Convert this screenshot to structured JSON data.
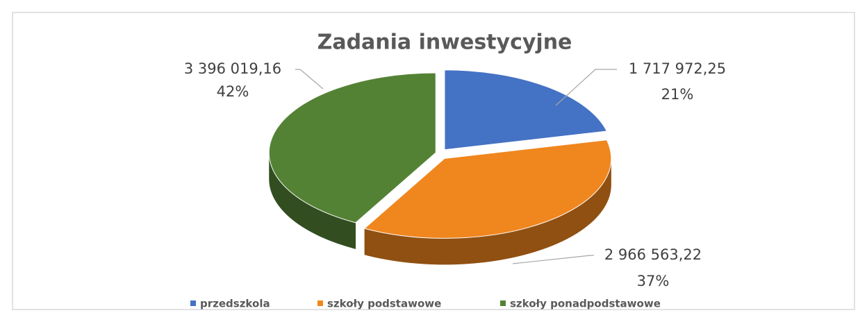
{
  "chart_data": {
    "type": "pie",
    "title": "Zadania inwestycyjne",
    "categories": [
      "przedszkola",
      "szkoły podstawowe",
      "szkoły ponadpodstawowe"
    ],
    "values": [
      1717972.25,
      2966563.22,
      3396019.16
    ],
    "value_labels": [
      "1 717 972,25",
      "2 966 563,22",
      "3 396 019,16"
    ],
    "percentages": [
      21,
      37,
      42
    ],
    "percentage_labels": [
      "21%",
      "37%",
      "42%"
    ],
    "colors": [
      "#4472c4",
      "#f0861e",
      "#548235"
    ],
    "legend": "bottom"
  }
}
